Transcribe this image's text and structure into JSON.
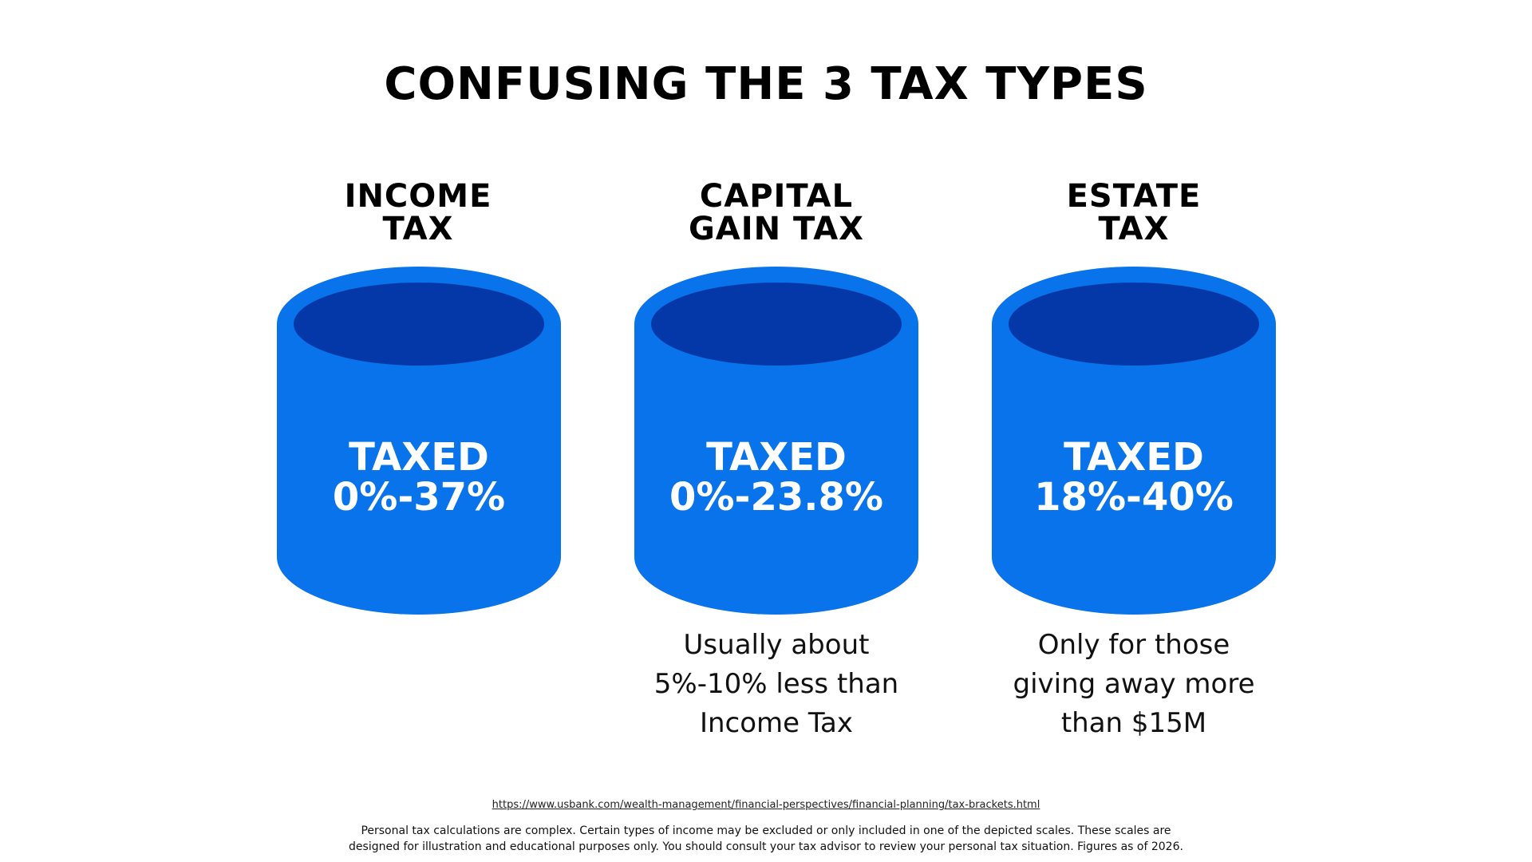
{
  "title": "CONFUSING THE 3 TAX TYPES",
  "colors": {
    "cylinder_body": "#0873EA",
    "cylinder_inner": "#0438A8",
    "cylinder_text": "#FFFFFF"
  },
  "columns": [
    {
      "heading_line1": "INCOME",
      "heading_line2": "TAX",
      "taxed_label": "TAXED",
      "rate": "0%-37%",
      "note_line1": "",
      "note_line2": "",
      "note_line3": ""
    },
    {
      "heading_line1": "CAPITAL",
      "heading_line2": "GAIN TAX",
      "taxed_label": "TAXED",
      "rate": "0%-23.8%",
      "note_line1": "Usually about",
      "note_line2": "5%-10% less than",
      "note_line3": "Income Tax"
    },
    {
      "heading_line1": "ESTATE",
      "heading_line2": "TAX",
      "taxed_label": "TAXED",
      "rate": "18%-40%",
      "note_line1": "Only for those",
      "note_line2": "giving away more",
      "note_line3": "than $15M"
    }
  ],
  "footer": {
    "source_url": "https://www.usbank.com/wealth-management/financial-perspectives/financial-planning/tax-brackets.html",
    "disclaimer_line1": "Personal tax calculations are complex. Certain types of income may be excluded or only included in one of the depicted scales. These scales are",
    "disclaimer_line2": "designed for illustration and educational purposes only. You should consult your tax advisor to review your personal tax situation. Figures as of 2026."
  }
}
